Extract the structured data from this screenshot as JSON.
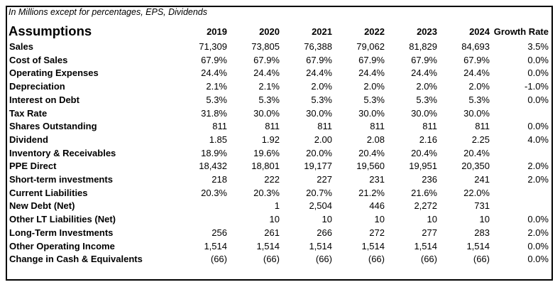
{
  "note": "In Millions except for percentages, EPS, Dividends",
  "heading": "Assumptions",
  "columns": [
    "2019",
    "2020",
    "2021",
    "2022",
    "2023",
    "2024",
    "Growth Rate"
  ],
  "rows": [
    {
      "label": "Sales",
      "values": [
        "71,309",
        "73,805",
        "76,388",
        "79,062",
        "81,829",
        "84,693",
        "3.5%"
      ]
    },
    {
      "label": "Cost of Sales",
      "values": [
        "67.9%",
        "67.9%",
        "67.9%",
        "67.9%",
        "67.9%",
        "67.9%",
        "0.0%"
      ]
    },
    {
      "label": "Operating Expenses",
      "values": [
        "24.4%",
        "24.4%",
        "24.4%",
        "24.4%",
        "24.4%",
        "24.4%",
        "0.0%"
      ]
    },
    {
      "label": "Depreciation",
      "values": [
        "2.1%",
        "2.1%",
        "2.0%",
        "2.0%",
        "2.0%",
        "2.0%",
        "-1.0%"
      ]
    },
    {
      "label": "Interest on Debt",
      "values": [
        "5.3%",
        "5.3%",
        "5.3%",
        "5.3%",
        "5.3%",
        "5.3%",
        "0.0%"
      ]
    },
    {
      "label": "Tax Rate",
      "values": [
        "31.8%",
        "30.0%",
        "30.0%",
        "30.0%",
        "30.0%",
        "30.0%",
        ""
      ]
    },
    {
      "label": "Shares Outstanding",
      "values": [
        "811",
        "811",
        "811",
        "811",
        "811",
        "811",
        "0.0%"
      ]
    },
    {
      "label": "Dividend",
      "values": [
        "1.85",
        "1.92",
        "2.00",
        "2.08",
        "2.16",
        "2.25",
        "4.0%"
      ]
    },
    {
      "label": "Inventory & Receivables",
      "values": [
        "18.9%",
        "19.6%",
        "20.0%",
        "20.4%",
        "20.4%",
        "20.4%",
        ""
      ]
    },
    {
      "label": "PPE Direct",
      "values": [
        "18,432",
        "18,801",
        "19,177",
        "19,560",
        "19,951",
        "20,350",
        "2.0%"
      ]
    },
    {
      "label": "Short-term investments",
      "values": [
        "218",
        "222",
        "227",
        "231",
        "236",
        "241",
        "2.0%"
      ]
    },
    {
      "label": "Current Liabilities",
      "values": [
        "20.3%",
        "20.3%",
        "20.7%",
        "21.2%",
        "21.6%",
        "22.0%",
        ""
      ]
    },
    {
      "label": "New Debt (Net)",
      "values": [
        "",
        "1",
        "2,504",
        "446",
        "2,272",
        "731",
        ""
      ]
    },
    {
      "label": "Other LT Liabilities (Net)",
      "values": [
        "",
        "10",
        "10",
        "10",
        "10",
        "10",
        "0.0%"
      ]
    },
    {
      "label": "Long-Term Investments",
      "values": [
        "256",
        "261",
        "266",
        "272",
        "277",
        "283",
        "2.0%"
      ]
    },
    {
      "label": "Other Operating Income",
      "values": [
        "1,514",
        "1,514",
        "1,514",
        "1,514",
        "1,514",
        "1,514",
        "0.0%"
      ]
    },
    {
      "label": "Change in Cash & Equivalents",
      "values": [
        "(66)",
        "(66)",
        "(66)",
        "(66)",
        "(66)",
        "(66)",
        "0.0%"
      ]
    }
  ]
}
